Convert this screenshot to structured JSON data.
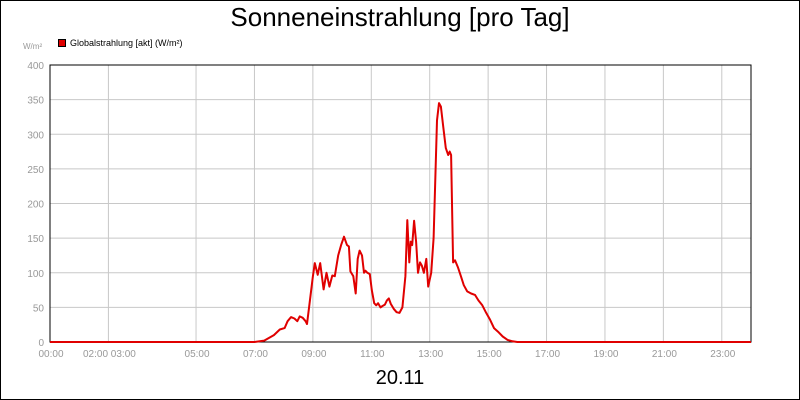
{
  "chart_data": {
    "type": "line",
    "title": "Sonneneinstrahlung [pro Tag]",
    "ylabel": "W/m²",
    "xlabel": "20.11",
    "ylim": [
      0,
      400
    ],
    "xlim": [
      "00:00",
      "24:00"
    ],
    "grid": true,
    "legend_position": "top-left",
    "y_ticks": [
      "0",
      "50",
      "100",
      "150",
      "200",
      "250",
      "300",
      "350",
      "400"
    ],
    "x_ticks": [
      "00:00",
      "02:00 03:00",
      "05:00",
      "07:00",
      "09:00",
      "11:00",
      "13:00",
      "15:00",
      "17:00",
      "19:00",
      "21:00",
      "23:00"
    ],
    "series": [
      {
        "name": "Globalstrahlung [akt] (W/m²)",
        "color": "#e00000",
        "points": [
          [
            "00:00",
            0
          ],
          [
            "07:00",
            0
          ],
          [
            "07:20",
            2
          ],
          [
            "07:40",
            10
          ],
          [
            "07:52",
            18
          ],
          [
            "08:02",
            20
          ],
          [
            "08:08",
            30
          ],
          [
            "08:15",
            36
          ],
          [
            "08:22",
            34
          ],
          [
            "08:28",
            30
          ],
          [
            "08:33",
            37
          ],
          [
            "08:39",
            35
          ],
          [
            "08:45",
            30
          ],
          [
            "08:48",
            26
          ],
          [
            "08:53",
            55
          ],
          [
            "09:00",
            95
          ],
          [
            "09:04",
            114
          ],
          [
            "09:10",
            97
          ],
          [
            "09:15",
            114
          ],
          [
            "09:22",
            76
          ],
          [
            "09:28",
            100
          ],
          [
            "09:34",
            80
          ],
          [
            "09:40",
            96
          ],
          [
            "09:45",
            95
          ],
          [
            "09:52",
            125
          ],
          [
            "09:58",
            140
          ],
          [
            "10:04",
            152
          ],
          [
            "10:10",
            140
          ],
          [
            "10:14",
            138
          ],
          [
            "10:17",
            102
          ],
          [
            "10:23",
            95
          ],
          [
            "10:28",
            70
          ],
          [
            "10:32",
            120
          ],
          [
            "10:36",
            132
          ],
          [
            "10:41",
            125
          ],
          [
            "10:45",
            100
          ],
          [
            "10:48",
            103
          ],
          [
            "10:52",
            100
          ],
          [
            "10:57",
            98
          ],
          [
            "11:01",
            75
          ],
          [
            "11:06",
            56
          ],
          [
            "11:10",
            53
          ],
          [
            "11:14",
            56
          ],
          [
            "11:19",
            50
          ],
          [
            "11:23",
            52
          ],
          [
            "11:28",
            54
          ],
          [
            "11:32",
            60
          ],
          [
            "11:36",
            63
          ],
          [
            "11:40",
            55
          ],
          [
            "11:46",
            48
          ],
          [
            "11:52",
            43
          ],
          [
            "11:58",
            42
          ],
          [
            "12:04",
            50
          ],
          [
            "12:10",
            95
          ],
          [
            "12:14",
            176
          ],
          [
            "12:18",
            115
          ],
          [
            "12:21",
            145
          ],
          [
            "12:24",
            140
          ],
          [
            "12:28",
            175
          ],
          [
            "12:32",
            145
          ],
          [
            "12:36",
            100
          ],
          [
            "12:40",
            115
          ],
          [
            "12:44",
            110
          ],
          [
            "12:48",
            100
          ],
          [
            "12:53",
            120
          ],
          [
            "12:57",
            80
          ],
          [
            "13:03",
            100
          ],
          [
            "13:08",
            150
          ],
          [
            "13:12",
            250
          ],
          [
            "13:15",
            320
          ],
          [
            "13:19",
            345
          ],
          [
            "13:23",
            340
          ],
          [
            "13:28",
            310
          ],
          [
            "13:33",
            280
          ],
          [
            "13:38",
            270
          ],
          [
            "13:41",
            275
          ],
          [
            "13:44",
            270
          ],
          [
            "13:48",
            115
          ],
          [
            "13:52",
            118
          ],
          [
            "13:58",
            108
          ],
          [
            "14:04",
            95
          ],
          [
            "14:10",
            82
          ],
          [
            "14:17",
            73
          ],
          [
            "14:25",
            70
          ],
          [
            "14:33",
            68
          ],
          [
            "14:40",
            60
          ],
          [
            "14:48",
            53
          ],
          [
            "14:56",
            42
          ],
          [
            "15:04",
            32
          ],
          [
            "15:12",
            20
          ],
          [
            "15:20",
            15
          ],
          [
            "15:30",
            8
          ],
          [
            "15:40",
            3
          ],
          [
            "15:50",
            1
          ],
          [
            "16:00",
            0
          ],
          [
            "24:00",
            0
          ]
        ]
      }
    ]
  }
}
